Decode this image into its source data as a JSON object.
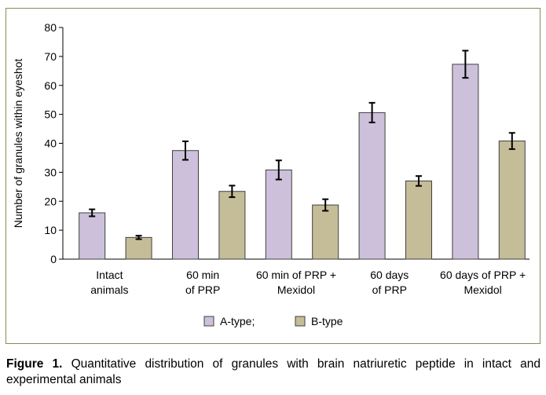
{
  "chart_data": {
    "type": "bar",
    "title": "",
    "xlabel": "",
    "ylabel": "Number of granules within eyeshot",
    "ylim": [
      0,
      80
    ],
    "yticks": [
      0,
      10,
      20,
      30,
      40,
      50,
      60,
      70,
      80
    ],
    "grid": false,
    "legend_position": "bottom",
    "categories": [
      [
        "Intact",
        "animals"
      ],
      [
        "60 min",
        "of PRP"
      ],
      [
        "60 min of PRP +",
        "Mexidol"
      ],
      [
        "60 days",
        "of PRP"
      ],
      [
        "60 days of PRP +",
        "Mexidol"
      ]
    ],
    "series": [
      {
        "name": "A-type;",
        "color": "#ccc0da",
        "values": [
          16,
          37.5,
          30.8,
          50.6,
          67.3
        ],
        "errors": [
          1.2,
          3.2,
          3.3,
          3.4,
          4.7
        ]
      },
      {
        "name": "B-type",
        "color": "#c4bd97",
        "values": [
          7.5,
          23.4,
          18.7,
          27,
          40.8
        ],
        "errors": [
          0.6,
          2,
          2,
          1.7,
          2.8
        ]
      }
    ]
  },
  "caption": {
    "label": "Figure 1.",
    "text": " Quantitative distribution of granules with brain natriuretic peptide in intact and experimental animals"
  }
}
